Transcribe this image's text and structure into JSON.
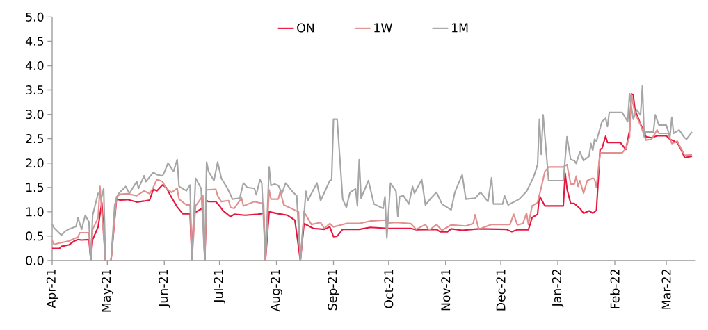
{
  "chart_data": {
    "type": "line",
    "legend": "top",
    "marker": "none",
    "line_style": "solid",
    "grid": false,
    "xlim": [
      "2021-04-01",
      "2022-03-17"
    ],
    "ylim": [
      0,
      5
    ],
    "xticks": [
      {
        "value": "2021-04-01",
        "label": "Apr-21"
      },
      {
        "value": "2021-05-01",
        "label": "May-21"
      },
      {
        "value": "2021-06-01",
        "label": "Jun-21"
      },
      {
        "value": "2021-07-01",
        "label": "Jul-21"
      },
      {
        "value": "2021-08-01",
        "label": "Aug-21"
      },
      {
        "value": "2021-09-01",
        "label": "Sep-21"
      },
      {
        "value": "2021-10-01",
        "label": "Oct-21"
      },
      {
        "value": "2021-11-01",
        "label": "Nov-21"
      },
      {
        "value": "2021-12-01",
        "label": "Dec-21"
      },
      {
        "value": "2022-01-01",
        "label": "Jan-22"
      },
      {
        "value": "2022-02-01",
        "label": "Feb-22"
      },
      {
        "value": "2022-03-01",
        "label": "Mar-22"
      }
    ],
    "yticks": [
      {
        "value": 0,
        "label": "0.0"
      },
      {
        "value": 0.5,
        "label": "0.5"
      },
      {
        "value": 1,
        "label": "1.0"
      },
      {
        "value": 1.5,
        "label": "1.5"
      },
      {
        "value": 2,
        "label": "2.0"
      },
      {
        "value": 2.5,
        "label": "2.5"
      },
      {
        "value": 3,
        "label": "3.0"
      },
      {
        "value": 3.5,
        "label": "3.5"
      },
      {
        "value": 4,
        "label": "4.0"
      },
      {
        "value": 4.5,
        "label": "4.5"
      },
      {
        "value": 5,
        "label": "5.0"
      }
    ],
    "series": [
      {
        "name": "ON",
        "color": "#e5173f",
        "x": [
          "2021-04-01",
          "2021-04-05",
          "2021-04-06",
          "2021-04-10",
          "2021-04-13",
          "2021-04-15",
          "2021-04-17",
          "2021-04-21",
          "2021-04-22",
          "2021-04-23",
          "2021-04-26",
          "2021-04-28",
          "2021-04-30",
          "2021-05-03",
          "2021-05-06",
          "2021-05-08",
          "2021-05-12",
          "2021-05-17",
          "2021-05-21",
          "2021-05-24",
          "2021-05-26",
          "2021-05-28",
          "2021-05-31",
          "2021-06-02",
          "2021-06-05",
          "2021-06-08",
          "2021-06-11",
          "2021-06-15",
          "2021-06-16",
          "2021-06-17",
          "2021-06-22",
          "2021-06-23",
          "2021-06-24",
          "2021-06-25",
          "2021-06-29",
          "2021-07-01",
          "2021-07-03",
          "2021-07-07",
          "2021-07-09",
          "2021-07-15",
          "2021-07-22",
          "2021-07-25",
          "2021-07-26",
          "2021-07-28",
          "2021-08-02",
          "2021-08-07",
          "2021-08-11",
          "2021-08-14",
          "2021-08-16",
          "2021-08-21",
          "2021-08-27",
          "2021-08-30",
          "2021-09-01",
          "2021-09-03",
          "2021-09-06",
          "2021-09-15",
          "2021-09-21",
          "2021-10-01",
          "2021-10-13",
          "2021-10-16",
          "2021-10-27",
          "2021-10-29",
          "2021-11-02",
          "2021-11-04",
          "2021-11-10",
          "2021-11-19",
          "2021-12-04",
          "2021-12-07",
          "2021-12-10",
          "2021-12-16",
          "2021-12-18",
          "2021-12-21",
          "2021-12-22",
          "2021-12-25",
          "2022-01-04",
          "2022-01-05",
          "2022-01-06",
          "2022-01-08",
          "2022-01-10",
          "2022-01-13",
          "2022-01-15",
          "2022-01-18",
          "2022-01-20",
          "2022-01-22",
          "2022-01-24",
          "2022-01-25",
          "2022-01-27",
          "2022-01-28",
          "2022-02-04",
          "2022-02-07",
          "2022-02-09",
          "2022-02-10",
          "2022-02-11",
          "2022-02-12",
          "2022-02-15",
          "2022-02-18",
          "2022-02-21",
          "2022-02-24",
          "2022-03-01",
          "2022-03-03",
          "2022-03-07",
          "2022-03-09",
          "2022-03-11",
          "2022-03-15"
        ],
        "values": [
          0.25,
          0.25,
          0.29,
          0.32,
          0.4,
          0.43,
          0.42,
          0.43,
          0,
          0.43,
          0.69,
          1.19,
          0,
          0,
          1.26,
          1.24,
          1.25,
          1.2,
          1.22,
          1.24,
          1.46,
          1.43,
          1.55,
          1.5,
          1.29,
          1.1,
          0.96,
          0.96,
          0,
          0.97,
          1.08,
          0,
          1.23,
          1.21,
          1.21,
          1.12,
          1.02,
          0.9,
          0.95,
          0.93,
          0.95,
          0.97,
          0,
          1.0,
          0.96,
          0.93,
          0.83,
          0,
          0.76,
          0.66,
          0.64,
          0.69,
          0.49,
          0.5,
          0.64,
          0.64,
          0.68,
          0.66,
          0.66,
          0.63,
          0.64,
          0.59,
          0.59,
          0.65,
          0.62,
          0.65,
          0.64,
          0.59,
          0.63,
          0.63,
          0.88,
          0.95,
          1.33,
          1.12,
          1.12,
          1.79,
          1.47,
          1.17,
          1.17,
          1.07,
          0.97,
          1.02,
          0.97,
          1.03,
          2.28,
          2.3,
          2.55,
          2.42,
          2.42,
          2.28,
          2.66,
          3.42,
          3.4,
          3.09,
          2.8,
          2.54,
          2.52,
          2.56,
          2.56,
          2.49,
          2.42,
          2.28,
          2.11,
          2.14
        ]
      },
      {
        "name": "1W",
        "color": "#e0918f",
        "x": [
          "2021-04-01",
          "2021-04-02",
          "2021-04-05",
          "2021-04-10",
          "2021-04-13",
          "2021-04-15",
          "2021-04-16",
          "2021-04-21",
          "2021-04-22",
          "2021-04-23",
          "2021-04-26",
          "2021-04-27",
          "2021-04-28",
          "2021-04-30",
          "2021-05-03",
          "2021-05-06",
          "2021-05-08",
          "2021-05-12",
          "2021-05-17",
          "2021-05-21",
          "2021-05-24",
          "2021-05-26",
          "2021-05-28",
          "2021-05-31",
          "2021-06-02",
          "2021-06-05",
          "2021-06-08",
          "2021-06-09",
          "2021-06-13",
          "2021-06-15",
          "2021-06-16",
          "2021-06-18",
          "2021-06-22",
          "2021-06-23",
          "2021-06-24",
          "2021-06-29",
          "2021-06-30",
          "2021-07-02",
          "2021-07-06",
          "2021-07-07",
          "2021-07-09",
          "2021-07-13",
          "2021-07-14",
          "2021-07-20",
          "2021-07-22",
          "2021-07-25",
          "2021-07-26",
          "2021-07-28",
          "2021-07-29",
          "2021-08-02",
          "2021-08-03",
          "2021-08-05",
          "2021-08-09",
          "2021-08-13",
          "2021-08-14",
          "2021-08-16",
          "2021-08-20",
          "2021-08-25",
          "2021-08-27",
          "2021-08-30",
          "2021-09-01",
          "2021-09-08",
          "2021-09-15",
          "2021-09-21",
          "2021-09-29",
          "2021-10-01",
          "2021-10-05",
          "2021-10-13",
          "2021-10-16",
          "2021-10-21",
          "2021-10-23",
          "2021-10-27",
          "2021-10-30",
          "2021-11-04",
          "2021-11-12",
          "2021-11-16",
          "2021-11-17",
          "2021-11-19",
          "2021-11-26",
          "2021-12-06",
          "2021-12-08",
          "2021-12-10",
          "2021-12-13",
          "2021-12-15",
          "2021-12-16",
          "2021-12-18",
          "2021-12-21",
          "2021-12-23",
          "2021-12-25",
          "2021-12-27",
          "2022-01-04",
          "2022-01-06",
          "2022-01-08",
          "2022-01-10",
          "2022-01-11",
          "2022-01-12",
          "2022-01-13",
          "2022-01-15",
          "2022-01-17",
          "2022-01-20",
          "2022-01-21",
          "2022-01-22",
          "2022-01-24",
          "2022-02-05",
          "2022-02-07",
          "2022-02-09",
          "2022-02-10",
          "2022-02-12",
          "2022-02-15",
          "2022-02-18",
          "2022-02-21",
          "2022-02-24",
          "2022-02-25",
          "2022-03-02",
          "2022-03-04",
          "2022-03-07",
          "2022-03-11",
          "2022-03-15"
        ],
        "values": [
          0.41,
          0.33,
          0.36,
          0.4,
          0.45,
          0.48,
          0.57,
          0.57,
          0,
          0.64,
          0.88,
          1.52,
          1.0,
          0,
          0,
          1.31,
          1.36,
          1.37,
          1.33,
          1.43,
          1.37,
          1.5,
          1.67,
          1.62,
          1.48,
          1.4,
          1.48,
          1.26,
          1.14,
          1.14,
          0,
          1.12,
          1.33,
          0,
          1.45,
          1.46,
          1.33,
          1.21,
          1.23,
          1.09,
          1.07,
          1.28,
          1.12,
          1.21,
          1.19,
          1.17,
          0,
          1.45,
          1.26,
          1.26,
          1.42,
          1.14,
          1.07,
          1.0,
          0,
          1.0,
          0.74,
          0.78,
          0.66,
          0.76,
          0.69,
          0.76,
          0.76,
          0.81,
          0.83,
          0.77,
          0.78,
          0.76,
          0.64,
          0.74,
          0.62,
          0.74,
          0.62,
          0.73,
          0.71,
          0.76,
          0.94,
          0.64,
          0.74,
          0.74,
          0.95,
          0.73,
          0.76,
          0.97,
          0.74,
          1.12,
          1.19,
          1.5,
          1.83,
          1.92,
          1.92,
          1.97,
          1.57,
          1.57,
          1.73,
          1.52,
          1.64,
          1.38,
          1.64,
          1.69,
          1.67,
          1.5,
          2.21,
          2.21,
          2.3,
          2.54,
          3.4,
          3.02,
          2.78,
          2.47,
          2.49,
          2.68,
          2.61,
          2.61,
          2.4,
          2.45,
          2.16,
          2.17
        ]
      },
      {
        "name": "1M",
        "color": "#a6a6a6",
        "x": [
          "2021-04-01",
          "2021-04-02",
          "2021-04-06",
          "2021-04-08",
          "2021-04-10",
          "2021-04-14",
          "2021-04-15",
          "2021-04-17",
          "2021-04-19",
          "2021-04-21",
          "2021-04-22",
          "2021-04-23",
          "2021-04-26",
          "2021-04-28",
          "2021-04-29",
          "2021-04-30",
          "2021-05-03",
          "2021-05-05",
          "2021-05-07",
          "2021-05-11",
          "2021-05-13",
          "2021-05-17",
          "2021-05-18",
          "2021-05-21",
          "2021-05-22",
          "2021-05-26",
          "2021-05-28",
          "2021-05-31",
          "2021-06-01",
          "2021-06-03",
          "2021-06-06",
          "2021-06-08",
          "2021-06-09",
          "2021-06-13",
          "2021-06-15",
          "2021-06-16",
          "2021-06-18",
          "2021-06-21",
          "2021-06-23",
          "2021-06-24",
          "2021-06-25",
          "2021-06-28",
          "2021-06-30",
          "2021-07-02",
          "2021-07-05",
          "2021-07-07",
          "2021-07-08",
          "2021-07-12",
          "2021-07-14",
          "2021-07-16",
          "2021-07-20",
          "2021-07-21",
          "2021-07-23",
          "2021-07-24",
          "2021-07-26",
          "2021-07-28",
          "2021-07-29",
          "2021-07-31",
          "2021-08-02",
          "2021-08-04",
          "2021-08-06",
          "2021-08-10",
          "2021-08-12",
          "2021-08-14",
          "2021-08-17",
          "2021-08-18",
          "2021-08-23",
          "2021-08-25",
          "2021-08-30",
          "2021-08-31",
          "2021-09-01",
          "2021-09-03",
          "2021-09-06",
          "2021-09-08",
          "2021-09-10",
          "2021-09-13",
          "2021-09-14",
          "2021-09-15",
          "2021-09-16",
          "2021-09-20",
          "2021-09-23",
          "2021-09-28",
          "2021-09-29",
          "2021-09-30",
          "2021-10-02",
          "2021-10-05",
          "2021-10-06",
          "2021-10-07",
          "2021-10-09",
          "2021-10-12",
          "2021-10-14",
          "2021-10-15",
          "2021-10-19",
          "2021-10-21",
          "2021-10-24",
          "2021-10-27",
          "2021-10-30",
          "2021-11-04",
          "2021-11-06",
          "2021-11-10",
          "2021-11-12",
          "2021-11-17",
          "2021-11-20",
          "2021-11-24",
          "2021-11-26",
          "2021-11-27",
          "2021-12-02",
          "2021-12-03",
          "2021-12-05",
          "2021-12-11",
          "2021-12-15",
          "2021-12-17",
          "2021-12-19",
          "2021-12-21",
          "2021-12-22",
          "2021-12-23",
          "2021-12-24",
          "2021-12-27",
          "2022-01-04",
          "2022-01-06",
          "2022-01-08",
          "2022-01-10",
          "2022-01-11",
          "2022-01-13",
          "2022-01-15",
          "2022-01-18",
          "2022-01-19",
          "2022-01-20",
          "2022-01-21",
          "2022-01-22",
          "2022-01-25",
          "2022-01-27",
          "2022-01-28",
          "2022-01-29",
          "2022-02-05",
          "2022-02-08",
          "2022-02-09",
          "2022-02-11",
          "2022-02-13",
          "2022-02-15",
          "2022-02-16",
          "2022-02-17",
          "2022-02-18",
          "2022-02-22",
          "2022-02-23",
          "2022-02-25",
          "2022-03-01",
          "2022-03-03",
          "2022-03-04",
          "2022-03-05",
          "2022-03-08",
          "2022-03-11",
          "2022-03-12",
          "2022-03-15"
        ],
        "values": [
          0.74,
          0.67,
          0.52,
          0.6,
          0.64,
          0.7,
          0.88,
          0.64,
          0.93,
          0.79,
          0,
          0.93,
          1.38,
          1.31,
          1.48,
          0,
          0,
          1.14,
          1.37,
          1.52,
          1.38,
          1.62,
          1.48,
          1.74,
          1.62,
          1.81,
          1.76,
          1.74,
          1.81,
          2.0,
          1.83,
          2.07,
          1.52,
          1.43,
          1.55,
          0,
          1.69,
          1.48,
          0,
          2.02,
          1.83,
          1.64,
          2.02,
          1.69,
          1.5,
          1.35,
          1.26,
          1.28,
          1.59,
          1.5,
          1.48,
          1.35,
          1.66,
          1.59,
          0,
          1.92,
          1.54,
          1.57,
          1.54,
          1.38,
          1.59,
          1.4,
          1.33,
          0,
          1.42,
          1.23,
          1.59,
          1.23,
          1.64,
          1.66,
          2.9,
          2.9,
          1.26,
          1.09,
          1.4,
          1.47,
          1.12,
          2.07,
          1.28,
          1.64,
          1.16,
          1.07,
          1.31,
          0.46,
          1.59,
          1.42,
          0.9,
          1.31,
          1.33,
          1.16,
          1.52,
          1.38,
          1.66,
          1.14,
          1.28,
          1.4,
          1.16,
          1.04,
          1.4,
          1.76,
          1.26,
          1.28,
          1.4,
          1.21,
          1.7,
          1.16,
          1.16,
          1.33,
          1.14,
          1.26,
          1.42,
          1.57,
          1.73,
          1.97,
          2.9,
          2.18,
          2.99,
          1.64,
          1.64,
          2.54,
          2.07,
          2.05,
          1.99,
          2.23,
          2.05,
          2.14,
          2.4,
          2.26,
          2.49,
          2.45,
          2.85,
          2.92,
          2.75,
          3.04,
          3.04,
          2.85,
          3.42,
          2.9,
          3.09,
          2.99,
          3.58,
          2.54,
          2.64,
          2.64,
          2.99,
          2.78,
          2.78,
          2.54,
          2.94,
          2.61,
          2.68,
          2.52,
          2.49,
          2.64
        ]
      }
    ]
  }
}
